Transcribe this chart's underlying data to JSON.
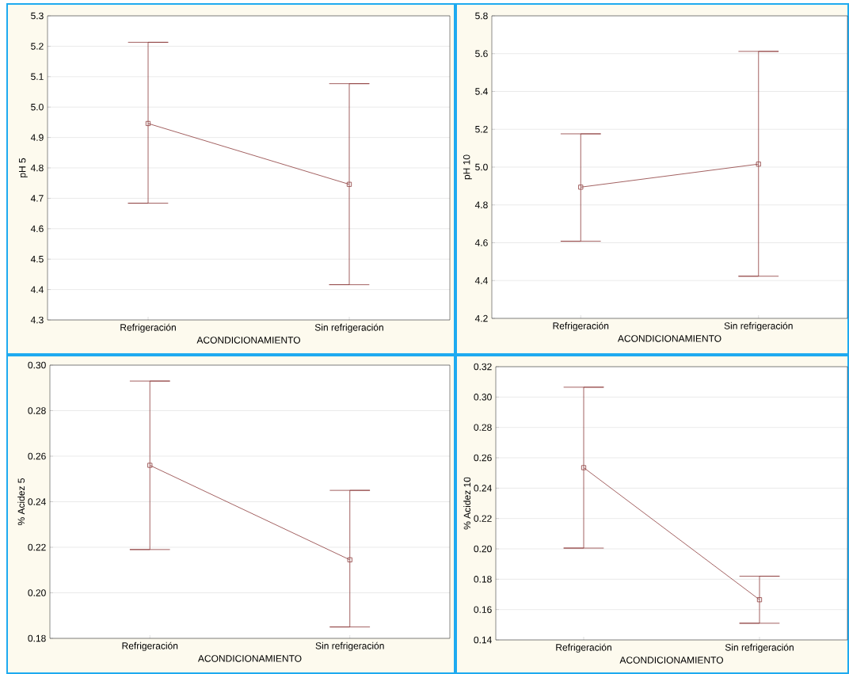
{
  "chart_data": [
    {
      "type": "line",
      "categories": [
        "Refrigeración",
        "Sin refrigeración"
      ],
      "xlabel": "ACONDICIONAMIENTO",
      "ylabel": "pH 5",
      "color": "#8b3a3a",
      "marker": "square",
      "grid": "y",
      "values": [
        4.946,
        4.746
      ],
      "errors": [
        [
          4.684,
          5.213
        ],
        [
          4.416,
          5.077
        ]
      ],
      "ylim": [
        4.3,
        5.3
      ],
      "yticks": [
        4.3,
        4.4,
        4.5,
        4.6,
        4.7,
        4.8,
        4.9,
        {
          "value": 5.0,
          "label": "5.0"
        },
        5.1,
        5.2,
        5.3
      ]
    },
    {
      "type": "line",
      "categories": [
        "Refrigeración",
        "Sin refrigeración"
      ],
      "xlabel": "ACONDICIONAMIENTO",
      "ylabel": "pH 10",
      "color": "#8b3a3a",
      "marker": "square",
      "grid": "y",
      "values": [
        4.894,
        5.016
      ],
      "errors": [
        [
          4.608,
          5.176
        ],
        [
          4.423,
          5.612
        ]
      ],
      "ylim": [
        4.2,
        5.8
      ],
      "yticks": [
        4.2,
        4.4,
        4.6,
        4.8,
        {
          "value": 5.0,
          "label": "5.0"
        },
        5.2,
        5.4,
        5.6,
        5.8
      ]
    },
    {
      "type": "line",
      "categories": [
        "Refrigeración",
        "Sin refrigeración"
      ],
      "xlabel": "ACONDICIONAMIENTO",
      "ylabel": "% Acidez 5",
      "color": "#8b3a3a",
      "marker": "square",
      "grid": "y",
      "values": [
        0.256,
        0.2145
      ],
      "errors": [
        [
          0.219,
          0.293
        ],
        [
          0.185,
          0.245
        ]
      ],
      "ylim": [
        0.18,
        0.3
      ],
      "yticks": [
        0.18,
        {
          "value": 0.2,
          "label": "0.20"
        },
        0.22,
        0.24,
        0.26,
        0.28,
        {
          "value": 0.3,
          "label": "0.30"
        }
      ]
    },
    {
      "type": "line",
      "categories": [
        "Refrigeración",
        "Sin refrigeración"
      ],
      "xlabel": "ACONDICIONAMIENTO",
      "ylabel": "% Acidez 10",
      "color": "#8b3a3a",
      "marker": "square",
      "grid": "y",
      "values": [
        0.2535,
        0.1665
      ],
      "errors": [
        [
          0.2005,
          0.3065
        ],
        [
          0.151,
          0.182
        ]
      ],
      "ylim": [
        0.14,
        0.32
      ],
      "yticks": [
        0.14,
        0.16,
        0.18,
        {
          "value": 0.2,
          "label": "0.20"
        },
        0.22,
        0.24,
        0.26,
        0.28,
        {
          "value": 0.3,
          "label": "0.30"
        },
        0.32
      ]
    }
  ]
}
